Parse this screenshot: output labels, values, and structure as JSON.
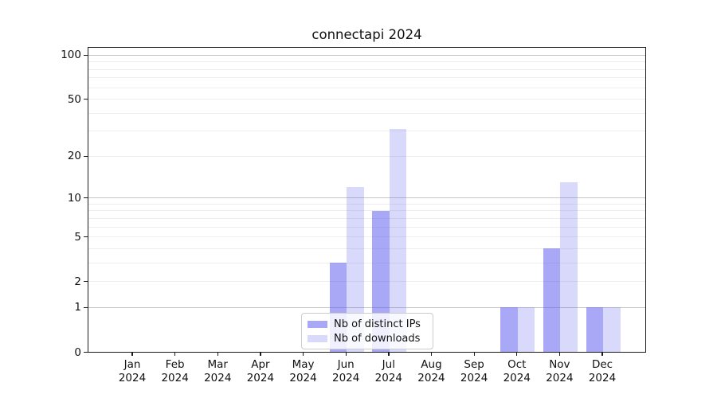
{
  "chart_data": {
    "type": "bar",
    "title": "connectapi 2024",
    "x_categories": [
      {
        "month": "Jan",
        "year": "2024"
      },
      {
        "month": "Feb",
        "year": "2024"
      },
      {
        "month": "Mar",
        "year": "2024"
      },
      {
        "month": "Apr",
        "year": "2024"
      },
      {
        "month": "May",
        "year": "2024"
      },
      {
        "month": "Jun",
        "year": "2024"
      },
      {
        "month": "Jul",
        "year": "2024"
      },
      {
        "month": "Aug",
        "year": "2024"
      },
      {
        "month": "Sep",
        "year": "2024"
      },
      {
        "month": "Oct",
        "year": "2024"
      },
      {
        "month": "Nov",
        "year": "2024"
      },
      {
        "month": "Dec",
        "year": "2024"
      }
    ],
    "series": [
      {
        "name": "Nb of distinct IPs",
        "values": [
          0,
          0,
          0,
          0,
          0,
          3,
          8,
          0,
          0,
          1,
          4,
          1
        ],
        "color": "rgba(82,82,240,0.50)"
      },
      {
        "name": "Nb of downloads",
        "values": [
          0,
          0,
          0,
          0,
          0,
          12,
          31,
          0,
          0,
          1,
          13,
          1
        ],
        "color": "rgba(82,82,240,0.22)"
      }
    ],
    "y_axis": {
      "scale": "log10(value+1)",
      "tick_values": [
        0,
        1,
        2,
        5,
        10,
        20,
        50,
        100
      ],
      "major_grid_values": [
        1,
        10,
        100
      ],
      "minor_grid_values": [
        2,
        3,
        4,
        5,
        6,
        7,
        8,
        9,
        20,
        30,
        40,
        50,
        60,
        70,
        80,
        90
      ],
      "range_top": 105
    },
    "legend": {
      "position": "inside-bottom-center"
    },
    "grid": "on"
  }
}
